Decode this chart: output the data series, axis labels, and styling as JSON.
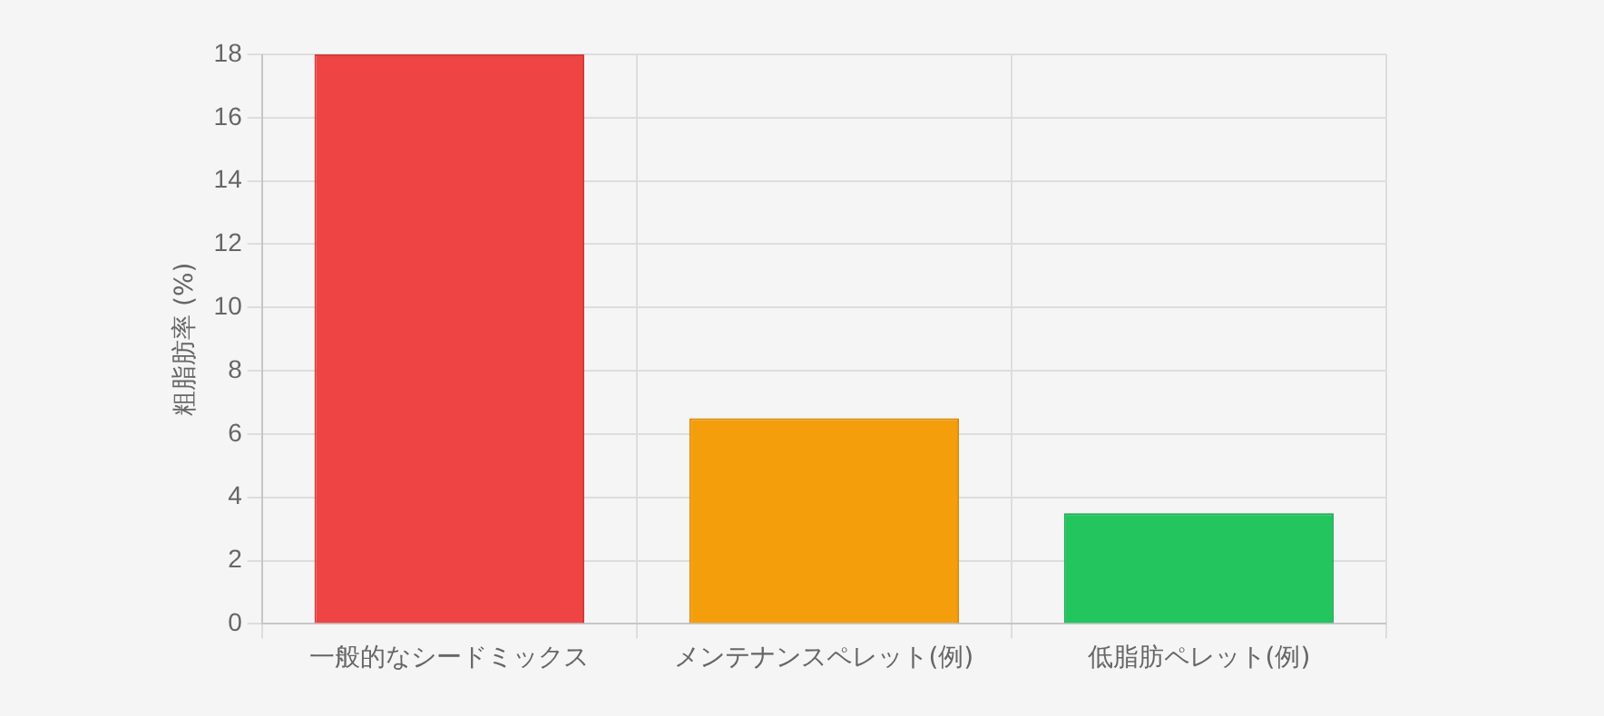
{
  "chart_data": {
    "type": "bar",
    "ylabel": "粗脂肪率 (%)",
    "categories": [
      "一般的なシードミックス",
      "メンテナンスペレット(例)",
      "低脂肪ペレット(例)"
    ],
    "values": [
      18,
      6.5,
      3.5
    ],
    "colors": [
      "#ef4444",
      "#f59e0b",
      "#22c55e"
    ],
    "ylim": [
      0,
      18
    ],
    "yticks": [
      0,
      2,
      4,
      6,
      8,
      10,
      12,
      14,
      16,
      18
    ],
    "grid": true,
    "legend": false
  }
}
